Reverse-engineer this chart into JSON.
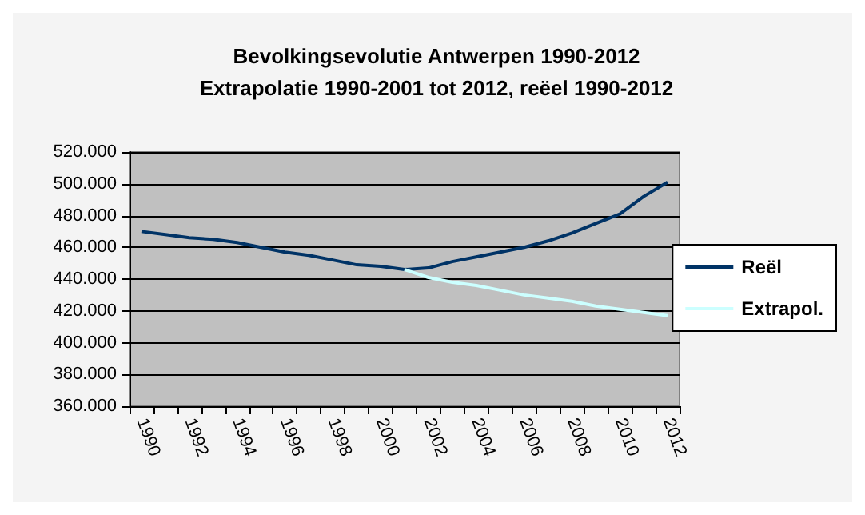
{
  "chart_data": {
    "type": "line",
    "title": "Bevolkingsevolutie Antwerpen 1990-2012\nExtrapolatie 1990-2001 tot 2012, reëel 1990-2012",
    "categories": [
      "1990",
      null,
      "1992",
      null,
      "1994",
      null,
      "1996",
      null,
      "1998",
      null,
      "2000",
      null,
      "2002",
      null,
      "2004",
      null,
      "2006",
      null,
      "2008",
      null,
      "2010",
      null,
      "2012"
    ],
    "series": [
      {
        "name": "Reël",
        "color": "#003366",
        "values": [
          470000,
          468000,
          466000,
          465000,
          463000,
          460000,
          457000,
          455000,
          452000,
          449000,
          448000,
          446000,
          447000,
          451000,
          454000,
          457000,
          460000,
          464000,
          469000,
          475000,
          481000,
          492000,
          501000
        ]
      },
      {
        "name": "Extrapol.",
        "color": "#ccffff",
        "values": [
          null,
          null,
          null,
          null,
          null,
          null,
          null,
          null,
          null,
          null,
          null,
          446000,
          441000,
          438000,
          436000,
          433000,
          430000,
          428000,
          426000,
          423000,
          421000,
          419000,
          417000
        ]
      }
    ],
    "ylim": [
      360000,
      520000
    ],
    "yticks": [
      {
        "value": 360000,
        "label": "360.000"
      },
      {
        "value": 380000,
        "label": "380.000"
      },
      {
        "value": 400000,
        "label": "400.000"
      },
      {
        "value": 420000,
        "label": "420.000"
      },
      {
        "value": 440000,
        "label": "440.000"
      },
      {
        "value": 460000,
        "label": "460.000"
      },
      {
        "value": 480000,
        "label": "480.000"
      },
      {
        "value": 500000,
        "label": "500.000"
      },
      {
        "value": 520000,
        "label": "520.000"
      }
    ],
    "grid": "y",
    "legend": "right",
    "marker": "none",
    "line_style": "solid"
  }
}
